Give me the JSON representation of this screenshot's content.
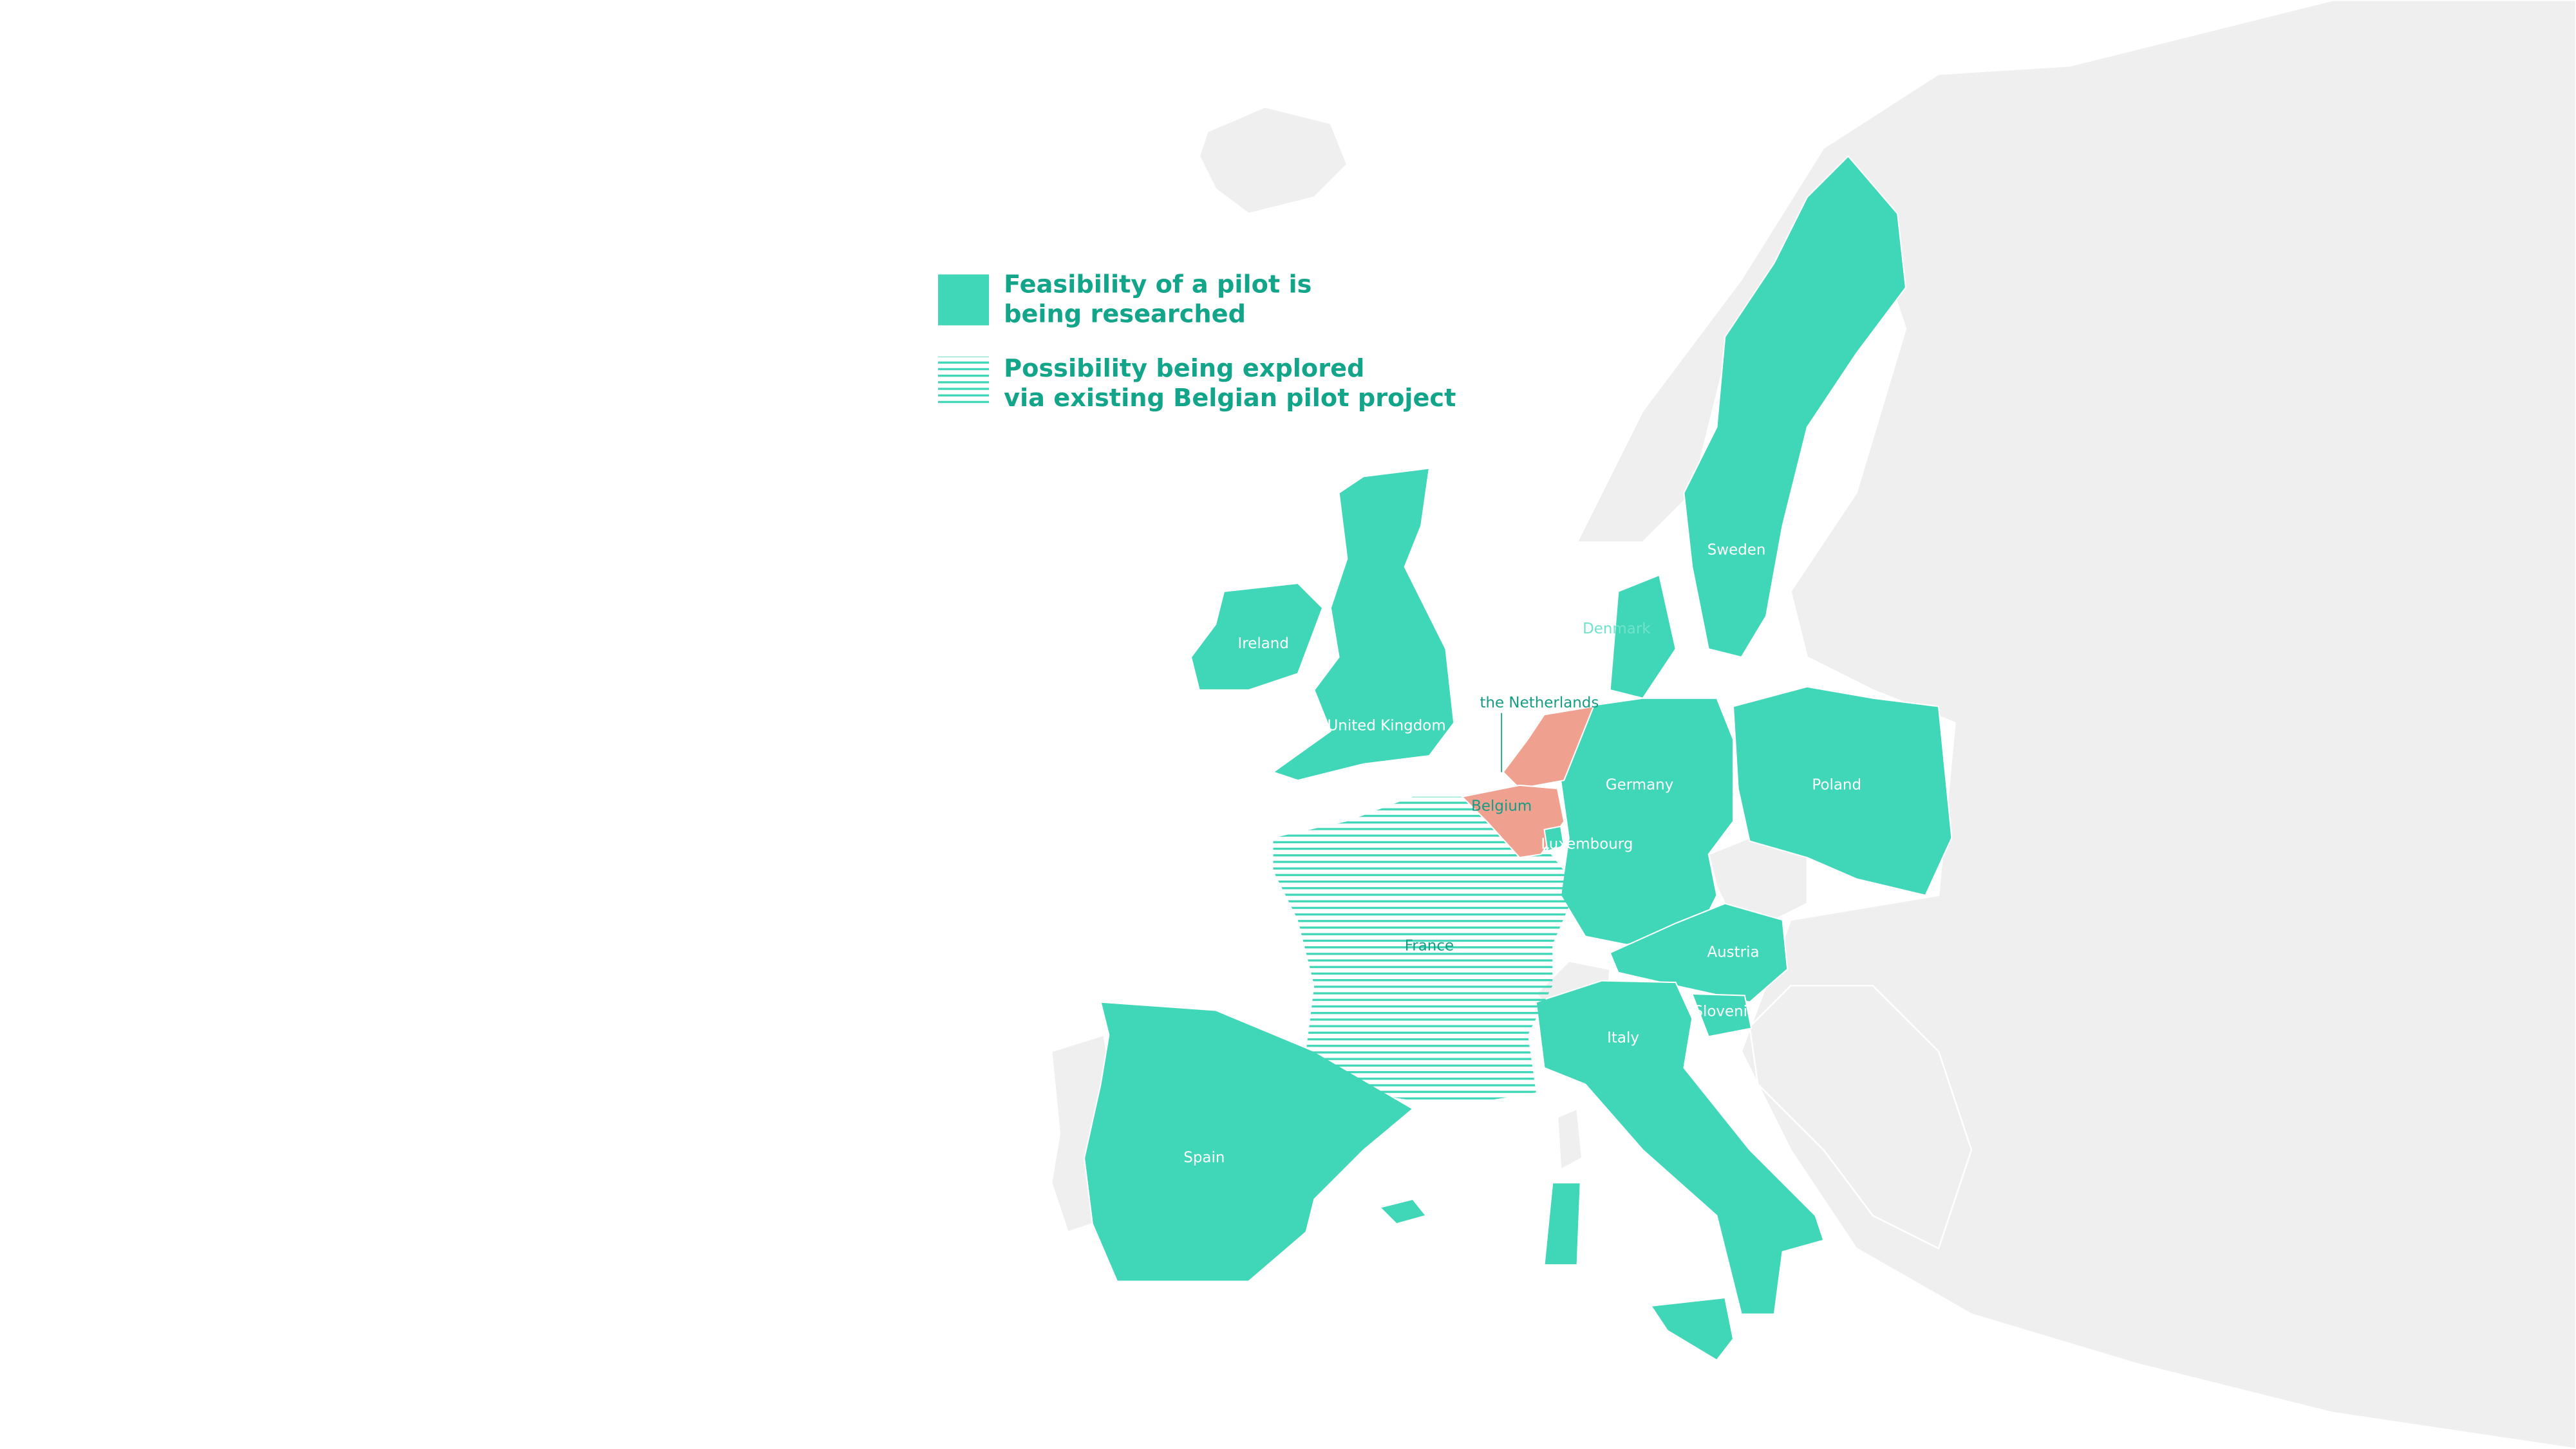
{
  "legend": [
    {
      "lines": [
        "Feasibility of a pilot is",
        "being researched"
      ]
    },
    {
      "lines": [
        "Possibility being explored",
        "via existing Belgian pilot project"
      ]
    }
  ],
  "countries": {
    "sweden": "Sweden",
    "denmark": "Denmark",
    "ireland": "Ireland",
    "uk": "United Kingdom",
    "netherlands": "the Netherlands",
    "belgium": "Belgium",
    "germany": "Germany",
    "poland": "Poland",
    "luxembourg": "Luxembourg",
    "france": "France",
    "austria": "Austria",
    "slovenia": "Slovenia",
    "italy": "Italy",
    "spain": "Spain"
  }
}
